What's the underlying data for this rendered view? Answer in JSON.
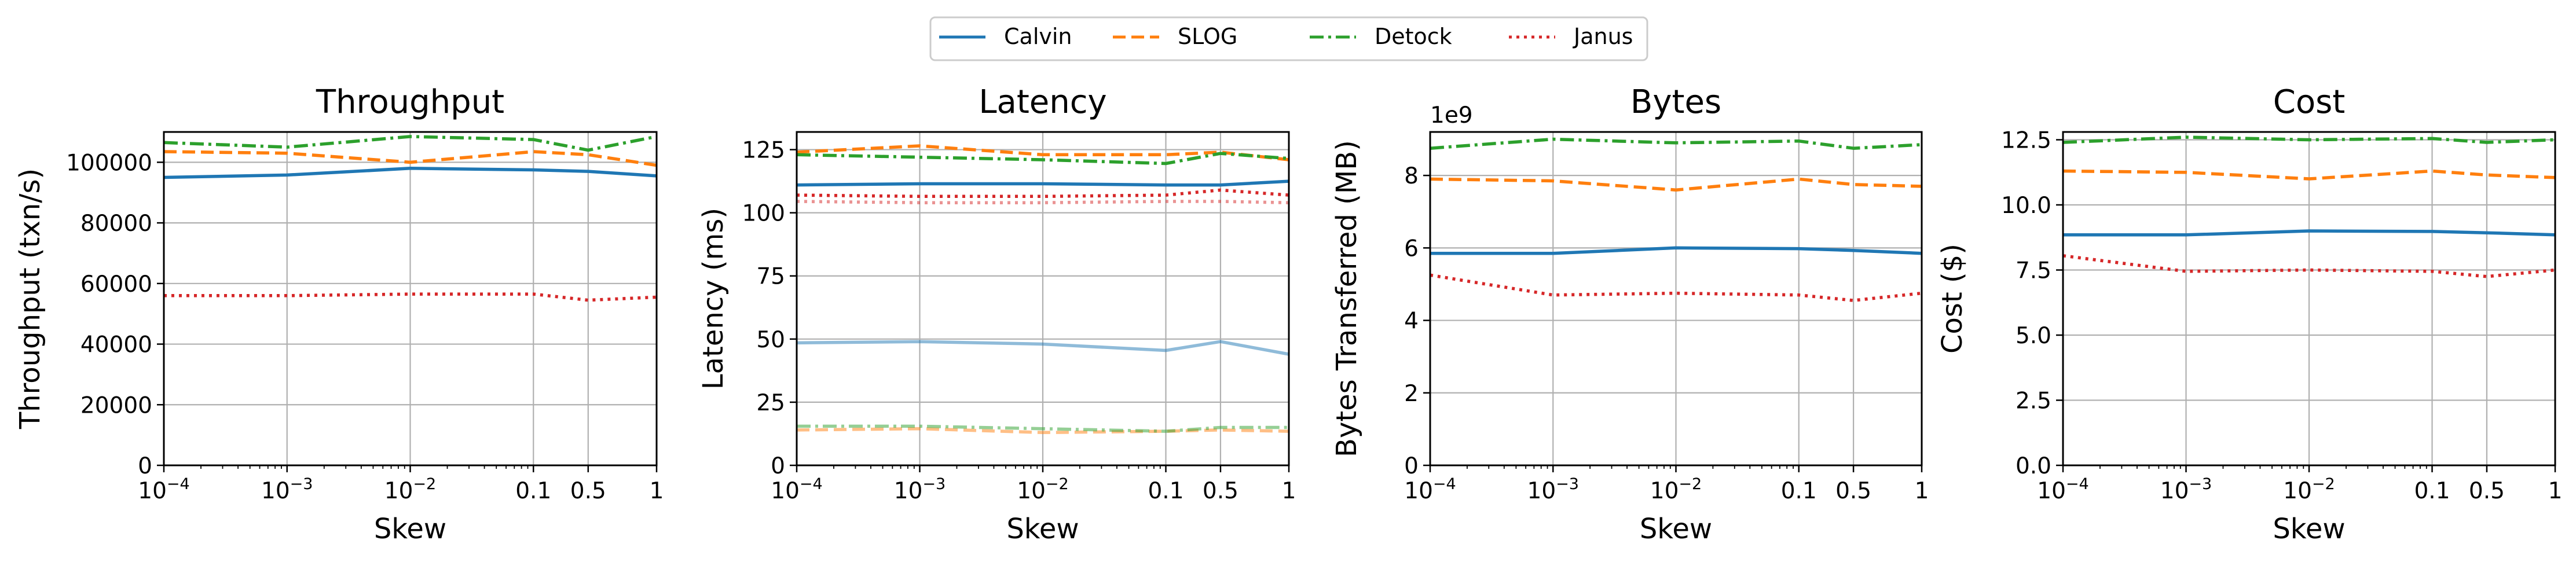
{
  "legend": {
    "entries": [
      {
        "name": "Calvin",
        "color": "#1f77b4",
        "dash": "solid"
      },
      {
        "name": "SLOG",
        "color": "#ff7f0e",
        "dash": "dashed"
      },
      {
        "name": "Detock",
        "color": "#2ca02c",
        "dash": "dashdot"
      },
      {
        "name": "Janus",
        "color": "#d62728",
        "dash": "dotted"
      }
    ],
    "placement": "top-center"
  },
  "chart_data": [
    {
      "type": "line",
      "title": "Throughput",
      "xlabel": "Skew",
      "ylabel": "Throughput (txn/s)",
      "xscale": "log-linear",
      "x": [
        0.0001,
        0.001,
        0.01,
        0.1,
        0.5,
        1
      ],
      "xticks": [
        "10^-4",
        "10^-3",
        "10^-2",
        "0.1",
        "0.5",
        "1"
      ],
      "ylim": [
        0,
        110000
      ],
      "yticks": [
        0,
        20000,
        40000,
        60000,
        80000,
        100000
      ],
      "yticklabels": [
        "0",
        "20000",
        "40000",
        "60000",
        "80000",
        "100000"
      ],
      "offset_text": "",
      "grid": true,
      "series": [
        {
          "name": "Calvin",
          "values": [
            95000,
            95800,
            98000,
            97500,
            97000,
            95500
          ]
        },
        {
          "name": "SLOG",
          "values": [
            103500,
            103000,
            100000,
            103500,
            102500,
            99000
          ]
        },
        {
          "name": "Detock",
          "values": [
            106500,
            105000,
            108500,
            107500,
            104000,
            108500
          ]
        },
        {
          "name": "Janus",
          "values": [
            56000,
            56000,
            56500,
            56500,
            54500,
            55500
          ]
        }
      ],
      "faded_series": []
    },
    {
      "type": "line",
      "title": "Latency",
      "xlabel": "Skew",
      "ylabel": "Latency (ms)",
      "xscale": "log-linear",
      "x": [
        0.0001,
        0.001,
        0.01,
        0.1,
        0.5,
        1
      ],
      "xticks": [
        "10^-4",
        "10^-3",
        "10^-2",
        "0.1",
        "0.5",
        "1"
      ],
      "ylim": [
        0,
        132
      ],
      "yticks": [
        0,
        25,
        50,
        75,
        100,
        125
      ],
      "yticklabels": [
        "0",
        "25",
        "50",
        "75",
        "100",
        "125"
      ],
      "offset_text": "",
      "grid": true,
      "series": [
        {
          "name": "Calvin",
          "values": [
            111,
            111.5,
            111.5,
            111,
            111,
            112.5
          ]
        },
        {
          "name": "SLOG",
          "values": [
            124,
            126.5,
            123,
            123,
            124,
            121
          ]
        },
        {
          "name": "Detock",
          "values": [
            123,
            122,
            121,
            119.5,
            123.5,
            121.5
          ]
        },
        {
          "name": "Janus",
          "values": [
            107,
            106.5,
            106.5,
            107,
            109,
            107
          ]
        }
      ],
      "faded_series": [
        {
          "name": "Calvin",
          "values": [
            48.5,
            49,
            48,
            45.5,
            49,
            44
          ]
        },
        {
          "name": "SLOG",
          "values": [
            14,
            14.5,
            13,
            13.5,
            14,
            13.5
          ]
        },
        {
          "name": "Detock",
          "values": [
            15.5,
            15.5,
            14.5,
            13.5,
            15,
            15
          ]
        },
        {
          "name": "Janus",
          "values": [
            104.5,
            104,
            104,
            104.5,
            104.5,
            104
          ]
        }
      ]
    },
    {
      "type": "line",
      "title": "Bytes",
      "xlabel": "Skew",
      "ylabel": "Bytes Transferred (MB)",
      "xscale": "log-linear",
      "x": [
        0.0001,
        0.001,
        0.01,
        0.1,
        0.5,
        1
      ],
      "xticks": [
        "10^-4",
        "10^-3",
        "10^-2",
        "0.1",
        "0.5",
        "1"
      ],
      "ylim": [
        0,
        9.2
      ],
      "yticks": [
        0,
        2,
        4,
        6,
        8
      ],
      "yticklabels": [
        "0",
        "2",
        "4",
        "6",
        "8"
      ],
      "offset_text": "1e9",
      "grid": true,
      "series": [
        {
          "name": "Calvin",
          "values": [
            5.85,
            5.85,
            6.0,
            5.98,
            5.93,
            5.85
          ]
        },
        {
          "name": "SLOG",
          "values": [
            7.9,
            7.85,
            7.6,
            7.9,
            7.75,
            7.7
          ]
        },
        {
          "name": "Detock",
          "values": [
            8.75,
            9.0,
            8.9,
            8.95,
            8.75,
            8.85
          ]
        },
        {
          "name": "Janus",
          "values": [
            5.25,
            4.7,
            4.75,
            4.7,
            4.55,
            4.75
          ]
        }
      ],
      "faded_series": []
    },
    {
      "type": "line",
      "title": "Cost",
      "xlabel": "Skew",
      "ylabel": "Cost ($)",
      "xscale": "log-linear",
      "x": [
        0.0001,
        0.001,
        0.01,
        0.1,
        0.5,
        1
      ],
      "xticks": [
        "10^-4",
        "10^-3",
        "10^-2",
        "0.1",
        "0.5",
        "1"
      ],
      "ylim": [
        0,
        12.8
      ],
      "yticks": [
        0,
        2.5,
        5,
        7.5,
        10,
        12.5
      ],
      "yticklabels": [
        "0.0",
        "2.5",
        "5.0",
        "7.5",
        "10.0",
        "12.5"
      ],
      "offset_text": "",
      "grid": true,
      "series": [
        {
          "name": "Calvin",
          "values": [
            8.85,
            8.85,
            9.0,
            8.98,
            8.93,
            8.85
          ]
        },
        {
          "name": "SLOG",
          "values": [
            11.3,
            11.25,
            11.0,
            11.3,
            11.15,
            11.05
          ]
        },
        {
          "name": "Detock",
          "values": [
            12.4,
            12.6,
            12.5,
            12.55,
            12.4,
            12.5
          ]
        },
        {
          "name": "Janus",
          "values": [
            8.05,
            7.45,
            7.5,
            7.45,
            7.25,
            7.5
          ]
        }
      ],
      "faded_series": []
    }
  ]
}
